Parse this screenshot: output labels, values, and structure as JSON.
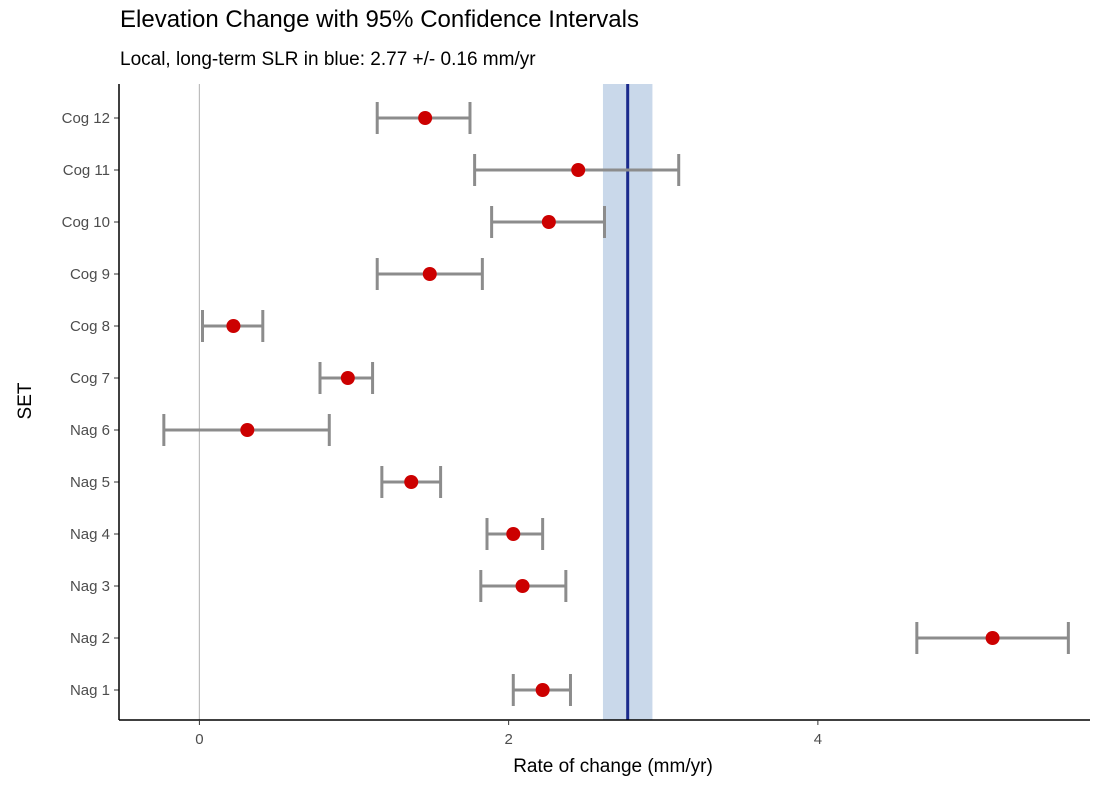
{
  "chart_data": {
    "type": "errorbar",
    "title": "Elevation Change with 95% Confidence Intervals",
    "subtitle": "Local, long-term SLR in blue: 2.77 +/- 0.16 mm/yr",
    "xlabel": "Rate of change (mm/yr)",
    "ylabel": "SET",
    "xlim": [
      -0.52,
      5.76
    ],
    "x_ticks": [
      0,
      2,
      4
    ],
    "grid": false,
    "reference_line": {
      "x": 0,
      "color": "#bdbdbd"
    },
    "slr_band": {
      "mean": 2.77,
      "ci": 0.16,
      "line_color": "#1a2a8c",
      "band_color": "#c9d8ea"
    },
    "point_color": "#cc0000",
    "errorbar_color": "#8c8c8c",
    "categories": [
      "Nag 1",
      "Nag 2",
      "Nag 3",
      "Nag 4",
      "Nag 5",
      "Nag 6",
      "Cog 7",
      "Cog 8",
      "Cog 9",
      "Cog 10",
      "Cog 11",
      "Cog 12"
    ],
    "estimates": [
      2.22,
      5.13,
      2.09,
      2.03,
      1.37,
      0.31,
      0.96,
      0.22,
      1.49,
      2.26,
      2.45,
      1.46
    ],
    "lower": [
      2.03,
      4.64,
      1.82,
      1.86,
      1.18,
      -0.23,
      0.78,
      0.02,
      1.15,
      1.89,
      1.78,
      1.15
    ],
    "upper": [
      2.4,
      5.62,
      2.37,
      2.22,
      1.56,
      0.84,
      1.12,
      0.41,
      1.83,
      2.62,
      3.1,
      1.75
    ]
  }
}
